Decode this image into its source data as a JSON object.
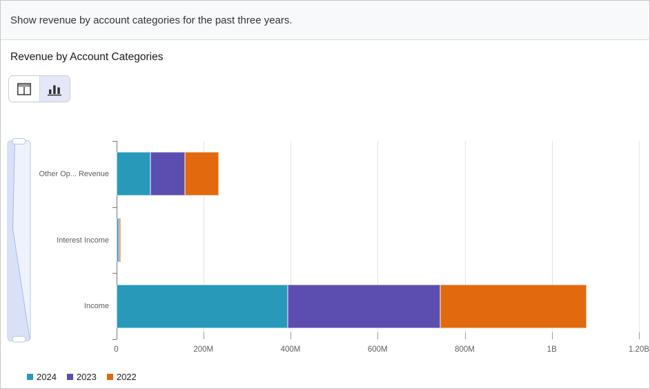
{
  "prompt_bar": {
    "text": "Show revenue by account categories for the past three years."
  },
  "panel": {
    "title": "Revenue by Account Categories",
    "view_toggle": {
      "options": [
        {
          "name": "table-view",
          "icon": "table-icon",
          "selected": false
        },
        {
          "name": "chart-view",
          "icon": "bar-chart-icon",
          "selected": true
        }
      ]
    }
  },
  "chart_data": {
    "type": "bar",
    "orientation": "horizontal",
    "stacked": true,
    "title": "Revenue by Account Categories",
    "categories": [
      "Other Op... Revenue",
      "Interest Income",
      "Income"
    ],
    "series": [
      {
        "name": "2024",
        "color": "#2999b9",
        "values": [
          79,
          5,
          394
        ]
      },
      {
        "name": "2023",
        "color": "#5c4db1",
        "values": [
          79,
          1.5,
          350
        ]
      },
      {
        "name": "2022",
        "color": "#e2690d",
        "values": [
          78,
          3,
          336
        ]
      }
    ],
    "value_unit": "millions",
    "x_axis": {
      "tick_labels": [
        "0",
        "200M",
        "400M",
        "600M",
        "800M",
        "1B",
        "1.20B"
      ],
      "tick_values": [
        0,
        200,
        400,
        600,
        800,
        1000,
        1200
      ],
      "max": 1200
    },
    "grid": true,
    "legend": {
      "position": "bottom-left",
      "items": [
        "2024",
        "2023",
        "2022"
      ]
    },
    "colors": {
      "axis": "#757575",
      "gridline": "#e0e4ef",
      "label": "#5e5e5e"
    }
  }
}
